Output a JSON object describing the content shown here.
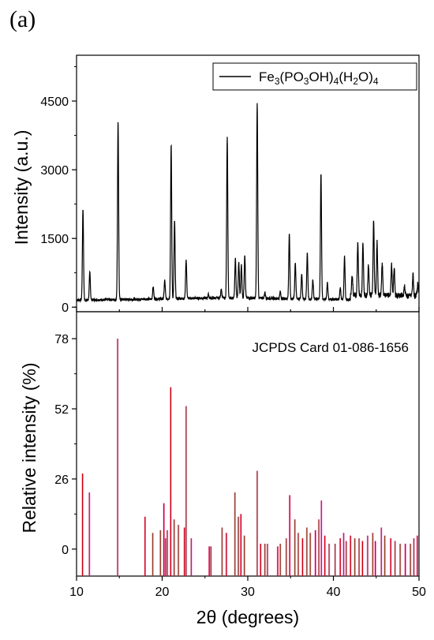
{
  "panel_label": "(a)",
  "chart_data": [
    {
      "type": "line",
      "ylabel": "Intensity (a.u.)",
      "xlim": [
        10,
        50
      ],
      "ylim": [
        -100,
        5500
      ],
      "yticks": [
        0,
        1500,
        3000,
        4500
      ],
      "grid": false,
      "legend": {
        "placement": "top-right",
        "entries": [
          {
            "text": "Fe3(PO3OH)4(H2O)4",
            "color": "#000000"
          }
        ]
      },
      "series": [
        {
          "name": "Fe3(PO3OH)4(H2O)4",
          "color": "#000000",
          "baseline": 150,
          "peaks": [
            [
              10.75,
              2150
            ],
            [
              11.55,
              750
            ],
            [
              14.85,
              4050
            ],
            [
              18.95,
              420
            ],
            [
              20.3,
              550
            ],
            [
              21.05,
              3500
            ],
            [
              21.45,
              1850
            ],
            [
              22.8,
              1000
            ],
            [
              25.4,
              230
            ],
            [
              26.9,
              350
            ],
            [
              27.6,
              3650
            ],
            [
              28.55,
              1000
            ],
            [
              28.95,
              920
            ],
            [
              29.25,
              880
            ],
            [
              29.65,
              1100
            ],
            [
              31.1,
              4400
            ],
            [
              32.0,
              280
            ],
            [
              33.8,
              300
            ],
            [
              34.85,
              1550
            ],
            [
              35.55,
              950
            ],
            [
              36.3,
              700
            ],
            [
              36.95,
              1150
            ],
            [
              37.6,
              580
            ],
            [
              38.55,
              2900
            ],
            [
              39.3,
              520
            ],
            [
              40.8,
              420
            ],
            [
              41.3,
              1080
            ],
            [
              42.2,
              600
            ],
            [
              42.85,
              1300
            ],
            [
              43.45,
              1300
            ],
            [
              44.1,
              820
            ],
            [
              44.7,
              1800
            ],
            [
              45.1,
              1300
            ],
            [
              45.7,
              870
            ],
            [
              46.8,
              820
            ],
            [
              47.1,
              750
            ],
            [
              48.3,
              350
            ],
            [
              49.3,
              600
            ],
            [
              49.85,
              420
            ]
          ]
        }
      ]
    },
    {
      "type": "bar",
      "annotation": "JCPDS Card 01-086-1656",
      "xlabel": "2θ (degrees)",
      "ylabel": "Relative intensity (%)",
      "xlim": [
        10,
        50
      ],
      "xticks": [
        10,
        20,
        30,
        40,
        50
      ],
      "ylim": [
        -10,
        88
      ],
      "yticks": [
        0,
        26,
        52,
        78
      ],
      "grid": false,
      "bar_color": "#8b4513",
      "highlight_color": "#ff00ff",
      "series": [
        {
          "name": "",
          "x": [
            10.7,
            11.5,
            14.8,
            18.0,
            18.9,
            19.8,
            20.2,
            20.4,
            20.6,
            21.0,
            21.4,
            21.9,
            22.6,
            22.8,
            23.4,
            25.5,
            25.7,
            27.0,
            27.5,
            28.5,
            28.9,
            29.2,
            29.6,
            31.1,
            31.5,
            32.0,
            32.3,
            33.5,
            33.8,
            34.5,
            34.9,
            35.5,
            35.9,
            36.4,
            36.9,
            37.3,
            37.9,
            38.3,
            38.6,
            39.0,
            39.5,
            40.2,
            40.8,
            41.2,
            41.5,
            42.0,
            42.5,
            43.0,
            43.4,
            44.0,
            44.6,
            44.9,
            45.6,
            46.0,
            46.7,
            47.2,
            47.8,
            48.4,
            49.0,
            49.4,
            49.8
          ],
          "values": [
            28,
            21,
            78,
            12,
            6,
            7,
            17,
            4,
            7,
            60,
            11,
            9,
            8,
            53,
            4,
            1,
            1,
            8,
            6,
            21,
            12,
            13,
            5,
            29,
            2,
            2,
            2,
            1,
            2,
            4,
            20,
            11,
            6,
            4,
            8,
            6,
            7,
            11,
            18,
            5,
            2,
            2,
            4,
            6,
            3,
            5,
            4,
            4,
            3,
            5,
            6,
            3,
            8,
            5,
            4,
            3,
            2,
            2,
            2,
            4,
            5
          ]
        }
      ]
    }
  ]
}
